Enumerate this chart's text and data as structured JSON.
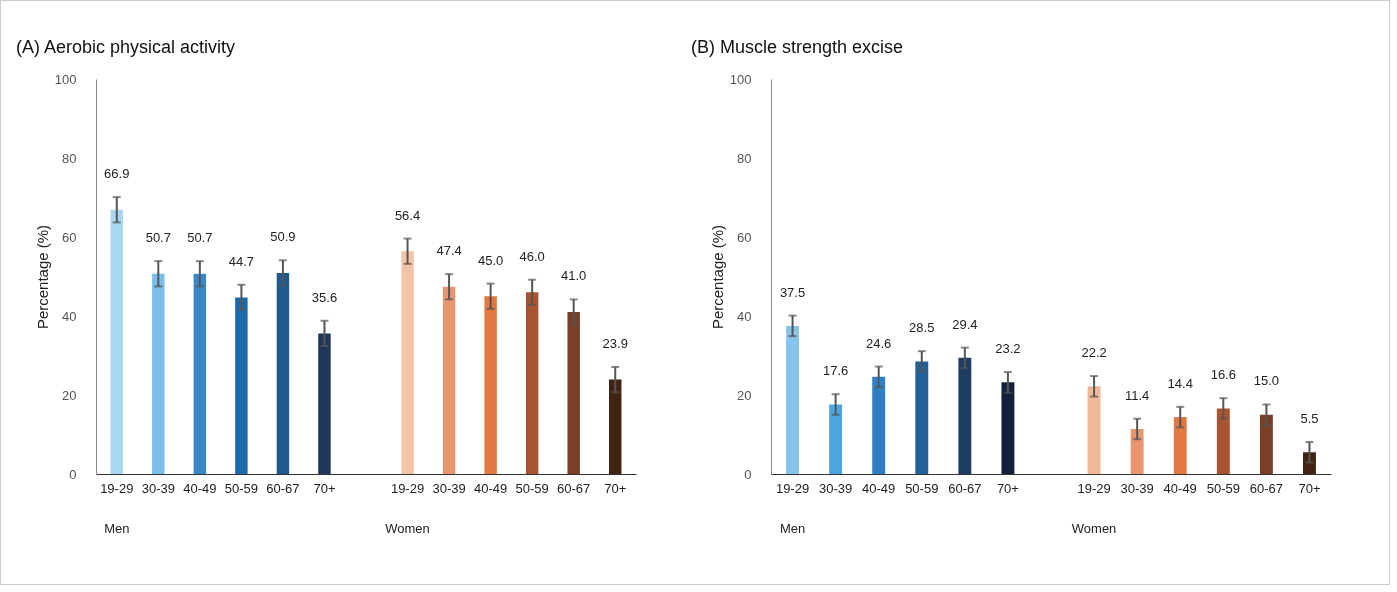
{
  "chart_data": [
    {
      "type": "bar",
      "title": "(A) Aerobic physical activity",
      "ylabel": "Percentage (%)",
      "categories": [
        "19-29",
        "30-39",
        "40-49",
        "50-59",
        "60-67",
        "70+",
        null,
        "19-29",
        "30-39",
        "40-49",
        "50-59",
        "60-67",
        "70+"
      ],
      "values": [
        66.9,
        50.7,
        50.7,
        44.7,
        50.9,
        35.6,
        null,
        56.4,
        47.4,
        45.0,
        46.0,
        41.0,
        23.9
      ],
      "value_labels": [
        "66.9",
        "50.7",
        "50.7",
        "44.7",
        "50.9",
        "35.6",
        null,
        "56.4",
        "47.4",
        "45.0",
        "46.0",
        "41.0",
        "23.9"
      ],
      "errors": [
        3.2,
        3.2,
        3.2,
        3.2,
        3.2,
        3.2,
        null,
        3.2,
        3.2,
        3.2,
        3.2,
        3.2,
        3.2
      ],
      "colors": [
        "#a9d6f1",
        "#7abde8",
        "#3a87c8",
        "#1b6aac",
        "#1f5a8f",
        "#213759",
        null,
        "#f4c4a8",
        "#e9966f",
        "#e37841",
        "#a95431",
        "#7a3f27",
        "#402313"
      ],
      "ylim": [
        0,
        100
      ],
      "yticks": [
        0,
        20,
        40,
        60,
        80,
        100
      ],
      "annotations": [
        "Men",
        "Women"
      ]
    },
    {
      "type": "bar",
      "title": "(B) Muscle strength excise",
      "ylabel": "Percentage (%)",
      "categories": [
        "19-29",
        "30-39",
        "40-49",
        "50-59",
        "60-67",
        "70+",
        null,
        "19-29",
        "30-39",
        "40-49",
        "50-59",
        "60-67",
        "70+"
      ],
      "values": [
        37.5,
        17.6,
        24.6,
        28.5,
        29.4,
        23.2,
        null,
        22.2,
        11.4,
        14.4,
        16.6,
        15.0,
        5.5
      ],
      "value_labels": [
        "37.5",
        "17.6",
        "24.6",
        "28.5",
        "29.4",
        "23.2",
        null,
        "22.2",
        "11.4",
        "14.4",
        "16.6",
        "15.0",
        "5.5"
      ],
      "errors": [
        2.6,
        2.6,
        2.6,
        2.6,
        2.6,
        2.6,
        null,
        2.6,
        2.6,
        2.6,
        2.6,
        2.6,
        2.6
      ],
      "colors": [
        "#86c4ea",
        "#4ba6dd",
        "#2f7fc2",
        "#23619a",
        "#1f3d62",
        "#14213d",
        null,
        "#f0b896",
        "#e9966f",
        "#e37841",
        "#a95431",
        "#7a3f27",
        "#402313"
      ],
      "ylim": [
        0,
        100
      ],
      "yticks": [
        0,
        20,
        40,
        60,
        80,
        100
      ],
      "annotations": [
        "Men",
        "Women"
      ]
    }
  ]
}
